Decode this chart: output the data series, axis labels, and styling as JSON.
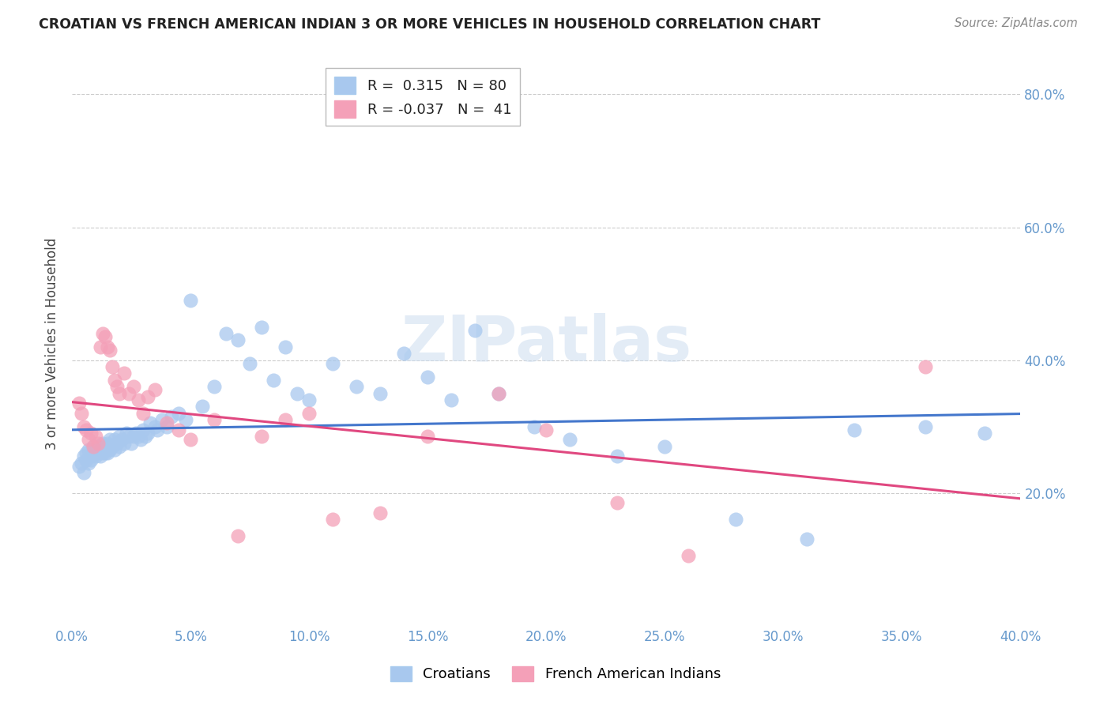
{
  "title": "CROATIAN VS FRENCH AMERICAN INDIAN 3 OR MORE VEHICLES IN HOUSEHOLD CORRELATION CHART",
  "source": "Source: ZipAtlas.com",
  "ylabel": "3 or more Vehicles in Household",
  "xlim": [
    0.0,
    0.4
  ],
  "ylim": [
    0.0,
    0.85
  ],
  "xtick_positions": [
    0.0,
    0.05,
    0.1,
    0.15,
    0.2,
    0.25,
    0.3,
    0.35,
    0.4
  ],
  "xtick_labels": [
    "0.0%",
    "5.0%",
    "10.0%",
    "15.0%",
    "20.0%",
    "25.0%",
    "30.0%",
    "35.0%",
    "40.0%"
  ],
  "ytick_positions": [
    0.2,
    0.4,
    0.6,
    0.8
  ],
  "ytick_labels": [
    "20.0%",
    "40.0%",
    "60.0%",
    "80.0%"
  ],
  "legend_r_croatian": "0.315",
  "legend_n_croatian": "80",
  "legend_r_french": "-0.037",
  "legend_n_french": "41",
  "croatian_color": "#a8c8ee",
  "french_color": "#f4a0b8",
  "line_croatian_color": "#4477cc",
  "line_french_color": "#e04880",
  "watermark": "ZIPatlas",
  "croatian_x": [
    0.003,
    0.004,
    0.005,
    0.005,
    0.006,
    0.006,
    0.007,
    0.007,
    0.008,
    0.008,
    0.009,
    0.009,
    0.01,
    0.01,
    0.011,
    0.011,
    0.012,
    0.012,
    0.013,
    0.013,
    0.014,
    0.014,
    0.015,
    0.015,
    0.016,
    0.016,
    0.017,
    0.018,
    0.018,
    0.019,
    0.02,
    0.02,
    0.021,
    0.022,
    0.023,
    0.024,
    0.025,
    0.026,
    0.027,
    0.028,
    0.029,
    0.03,
    0.031,
    0.032,
    0.033,
    0.035,
    0.036,
    0.038,
    0.04,
    0.042,
    0.045,
    0.048,
    0.05,
    0.055,
    0.06,
    0.065,
    0.07,
    0.075,
    0.08,
    0.085,
    0.09,
    0.095,
    0.1,
    0.11,
    0.12,
    0.13,
    0.14,
    0.15,
    0.16,
    0.17,
    0.18,
    0.195,
    0.21,
    0.23,
    0.25,
    0.28,
    0.31,
    0.33,
    0.36,
    0.385
  ],
  "croatian_y": [
    0.24,
    0.245,
    0.23,
    0.255,
    0.25,
    0.26,
    0.245,
    0.265,
    0.255,
    0.25,
    0.26,
    0.27,
    0.255,
    0.265,
    0.26,
    0.27,
    0.255,
    0.265,
    0.26,
    0.275,
    0.26,
    0.27,
    0.26,
    0.275,
    0.265,
    0.28,
    0.27,
    0.265,
    0.28,
    0.275,
    0.27,
    0.285,
    0.28,
    0.275,
    0.29,
    0.285,
    0.275,
    0.285,
    0.29,
    0.285,
    0.28,
    0.295,
    0.285,
    0.29,
    0.305,
    0.3,
    0.295,
    0.31,
    0.3,
    0.315,
    0.32,
    0.31,
    0.49,
    0.33,
    0.36,
    0.44,
    0.43,
    0.395,
    0.45,
    0.37,
    0.42,
    0.35,
    0.34,
    0.395,
    0.36,
    0.35,
    0.41,
    0.375,
    0.34,
    0.445,
    0.35,
    0.3,
    0.28,
    0.255,
    0.27,
    0.16,
    0.13,
    0.295,
    0.3,
    0.29
  ],
  "french_x": [
    0.003,
    0.004,
    0.005,
    0.006,
    0.007,
    0.008,
    0.009,
    0.01,
    0.011,
    0.012,
    0.013,
    0.014,
    0.015,
    0.016,
    0.017,
    0.018,
    0.019,
    0.02,
    0.022,
    0.024,
    0.026,
    0.028,
    0.03,
    0.032,
    0.035,
    0.04,
    0.045,
    0.05,
    0.06,
    0.07,
    0.08,
    0.09,
    0.1,
    0.11,
    0.13,
    0.15,
    0.18,
    0.2,
    0.23,
    0.26,
    0.36
  ],
  "french_y": [
    0.335,
    0.32,
    0.3,
    0.295,
    0.28,
    0.29,
    0.27,
    0.285,
    0.275,
    0.42,
    0.44,
    0.435,
    0.42,
    0.415,
    0.39,
    0.37,
    0.36,
    0.35,
    0.38,
    0.35,
    0.36,
    0.34,
    0.32,
    0.345,
    0.355,
    0.305,
    0.295,
    0.28,
    0.31,
    0.135,
    0.285,
    0.31,
    0.32,
    0.16,
    0.17,
    0.285,
    0.35,
    0.295,
    0.185,
    0.105,
    0.39
  ]
}
